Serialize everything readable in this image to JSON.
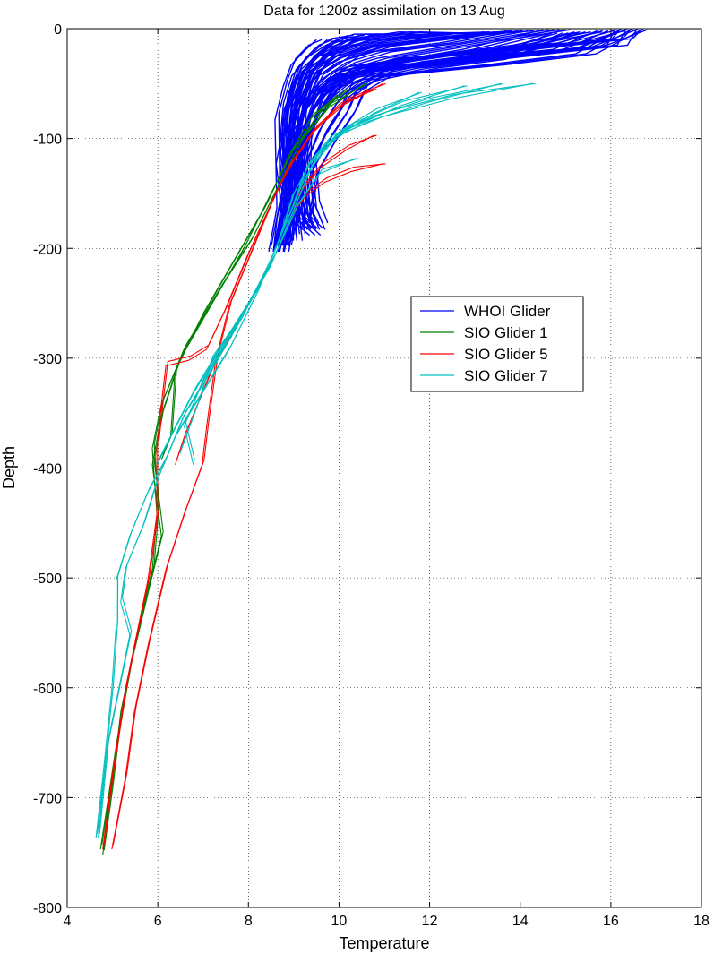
{
  "chart_data": {
    "type": "line",
    "title": "Data for 1200z assimilation on 13 Aug",
    "xlabel": "Temperature",
    "ylabel": "Depth",
    "xlim": [
      4,
      18
    ],
    "ylim": [
      -800,
      0
    ],
    "xticks": [
      4,
      6,
      8,
      10,
      12,
      14,
      16,
      18
    ],
    "yticks": [
      0,
      -100,
      -200,
      -300,
      -400,
      -500,
      -600,
      -700,
      -800
    ],
    "grid": true,
    "legend_position": "center-right",
    "series": [
      {
        "name": "WHOI Glider",
        "color": "#0000ff",
        "profiles": [
          [
            [
              16.4,
              0
            ],
            [
              16.2,
              -12
            ],
            [
              14,
              -22
            ],
            [
              11.5,
              -30
            ],
            [
              10.2,
              -42
            ],
            [
              9.6,
              -60
            ],
            [
              9.2,
              -90
            ],
            [
              9.0,
              -130
            ],
            [
              8.8,
              -170
            ],
            [
              8.7,
              -200
            ]
          ],
          [
            [
              16.0,
              -2
            ],
            [
              15,
              -16
            ],
            [
              12.5,
              -26
            ],
            [
              10.8,
              -36
            ],
            [
              9.9,
              -50
            ],
            [
              9.4,
              -75
            ],
            [
              9.1,
              -110
            ],
            [
              8.9,
              -150
            ],
            [
              8.8,
              -195
            ]
          ],
          [
            [
              15.5,
              -3
            ],
            [
              14,
              -18
            ],
            [
              12,
              -28
            ],
            [
              10.3,
              -38
            ],
            [
              9.7,
              -55
            ],
            [
              9.3,
              -85
            ],
            [
              9.1,
              -120
            ],
            [
              9.0,
              -160
            ],
            [
              9.1,
              -190
            ]
          ],
          [
            [
              14.8,
              -1
            ],
            [
              13,
              -16
            ],
            [
              11,
              -30
            ],
            [
              10,
              -42
            ],
            [
              9.5,
              -60
            ],
            [
              9.2,
              -95
            ],
            [
              9.2,
              -140
            ],
            [
              9.3,
              -175
            ]
          ],
          [
            [
              14,
              -2
            ],
            [
              12.5,
              -10
            ],
            [
              11,
              -18
            ],
            [
              10.2,
              -28
            ],
            [
              9.6,
              -45
            ],
            [
              9.2,
              -80
            ],
            [
              9.0,
              -115
            ],
            [
              8.9,
              -150
            ],
            [
              8.9,
              -190
            ]
          ],
          [
            [
              13.5,
              -3
            ],
            [
              12,
              -8
            ],
            [
              10.8,
              -14
            ],
            [
              10.0,
              -25
            ],
            [
              9.4,
              -40
            ],
            [
              9.1,
              -70
            ],
            [
              9.0,
              -110
            ],
            [
              9.0,
              -150
            ],
            [
              8.8,
              -200
            ]
          ],
          [
            [
              12.5,
              -4
            ],
            [
              11.5,
              -6
            ],
            [
              10.5,
              -12
            ],
            [
              9.8,
              -22
            ],
            [
              9.3,
              -40
            ],
            [
              9.0,
              -70
            ],
            [
              8.9,
              -110
            ],
            [
              9.0,
              -150
            ],
            [
              9.4,
              -180
            ]
          ],
          [
            [
              11.5,
              -5
            ],
            [
              10.5,
              -8
            ],
            [
              10,
              -15
            ],
            [
              9.6,
              -28
            ],
            [
              9.2,
              -50
            ],
            [
              9.0,
              -80
            ],
            [
              8.8,
              -120
            ],
            [
              8.9,
              -160
            ],
            [
              8.7,
              -200
            ]
          ],
          [
            [
              10.5,
              -6
            ],
            [
              10,
              -12
            ],
            [
              9.6,
              -22
            ],
            [
              9.2,
              -40
            ],
            [
              9.0,
              -65
            ],
            [
              8.9,
              -100
            ],
            [
              8.9,
              -140
            ],
            [
              9.1,
              -170
            ],
            [
              9.5,
              -185
            ]
          ],
          [
            [
              9.8,
              -10
            ],
            [
              9.5,
              -18
            ],
            [
              9.2,
              -30
            ],
            [
              9.0,
              -50
            ],
            [
              8.8,
              -80
            ],
            [
              8.8,
              -120
            ],
            [
              8.8,
              -160
            ],
            [
              8.6,
              -200
            ]
          ],
          [
            [
              16.5,
              -1
            ],
            [
              15.5,
              -20
            ],
            [
              13.5,
              -30
            ],
            [
              11,
              -40
            ],
            [
              10.4,
              -55
            ],
            [
              10.2,
              -75
            ],
            [
              9.8,
              -100
            ],
            [
              9.4,
              -130
            ],
            [
              9.2,
              -180
            ]
          ],
          [
            [
              15,
              -4
            ],
            [
              13.5,
              -25
            ],
            [
              12,
              -33
            ],
            [
              10.6,
              -45
            ],
            [
              10.0,
              -65
            ],
            [
              9.6,
              -90
            ],
            [
              9.3,
              -120
            ],
            [
              9.4,
              -160
            ],
            [
              9.6,
              -180
            ]
          ]
        ]
      },
      {
        "name": "SIO Glider 1",
        "color": "#008000",
        "profiles": [
          [
            [
              10.6,
              -50
            ],
            [
              9.8,
              -70
            ],
            [
              9.2,
              -100
            ],
            [
              8.7,
              -140
            ],
            [
              8.1,
              -190
            ],
            [
              7.4,
              -235
            ],
            [
              6.6,
              -290
            ],
            [
              6.1,
              -340
            ],
            [
              5.9,
              -380
            ],
            [
              6.0,
              -440
            ],
            [
              5.9,
              -490
            ],
            [
              5.5,
              -560
            ],
            [
              5.2,
              -620
            ],
            [
              5.0,
              -690
            ],
            [
              4.8,
              -750
            ]
          ],
          [
            [
              10.2,
              -55
            ],
            [
              9.6,
              -75
            ],
            [
              9.0,
              -110
            ],
            [
              8.5,
              -150
            ],
            [
              7.9,
              -200
            ],
            [
              7.2,
              -250
            ],
            [
              6.5,
              -300
            ],
            [
              6.1,
              -350
            ],
            [
              5.9,
              -395
            ],
            [
              6.1,
              -460
            ],
            [
              5.8,
              -510
            ],
            [
              5.4,
              -580
            ],
            [
              5.1,
              -650
            ],
            [
              4.75,
              -745
            ]
          ],
          [
            [
              10.0,
              -60
            ],
            [
              9.4,
              -80
            ],
            [
              8.9,
              -115
            ],
            [
              8.4,
              -160
            ],
            [
              7.7,
              -210
            ],
            [
              7.0,
              -260
            ],
            [
              6.4,
              -310
            ],
            [
              6.3,
              -370
            ],
            [
              6.1,
              -390
            ]
          ]
        ]
      },
      {
        "name": "SIO Glider 5",
        "color": "#ff0000",
        "profiles": [
          [
            [
              11.0,
              -50
            ],
            [
              10.2,
              -65
            ],
            [
              9.5,
              -90
            ],
            [
              9.0,
              -120
            ],
            [
              8.6,
              -150
            ],
            [
              8.1,
              -200
            ],
            [
              7.6,
              -250
            ],
            [
              7.3,
              -300
            ],
            [
              7.1,
              -360
            ],
            [
              7.0,
              -395
            ],
            [
              6.6,
              -440
            ],
            [
              6.2,
              -490
            ],
            [
              5.8,
              -560
            ],
            [
              5.5,
              -620
            ],
            [
              5.3,
              -680
            ],
            [
              5.0,
              -745
            ]
          ],
          [
            [
              10.8,
              -55
            ],
            [
              10.0,
              -70
            ],
            [
              9.4,
              -95
            ],
            [
              8.9,
              -125
            ],
            [
              8.5,
              -160
            ],
            [
              8.0,
              -205
            ],
            [
              7.5,
              -255
            ],
            [
              7.1,
              -290
            ],
            [
              6.7,
              -300
            ],
            [
              6.2,
              -305
            ],
            [
              6.1,
              -340
            ],
            [
              6.0,
              -380
            ],
            [
              6.0,
              -440
            ],
            [
              5.8,
              -500
            ],
            [
              5.5,
              -560
            ],
            [
              5.3,
              -600
            ],
            [
              5.0,
              -680
            ],
            [
              4.8,
              -745
            ]
          ],
          [
            [
              11.0,
              -123
            ],
            [
              10.3,
              -128
            ],
            [
              9.7,
              -138
            ],
            [
              9.3,
              -150
            ],
            [
              9.0,
              -165
            ]
          ],
          [
            [
              10.8,
              -97
            ],
            [
              10.2,
              -108
            ],
            [
              9.6,
              -125
            ],
            [
              9.1,
              -150
            ]
          ],
          [
            [
              7.6,
              -280
            ],
            [
              7.2,
              -310
            ],
            [
              6.9,
              -340
            ],
            [
              6.6,
              -370
            ],
            [
              6.4,
              -395
            ]
          ]
        ]
      },
      {
        "name": "SIO Glider 7",
        "color": "#00bfbf",
        "profiles": [
          [
            [
              14.3,
              -50
            ],
            [
              12.5,
              -62
            ],
            [
              11,
              -78
            ],
            [
              10,
              -95
            ],
            [
              9.4,
              -120
            ],
            [
              9.0,
              -150
            ],
            [
              8.7,
              -190
            ],
            [
              8.2,
              -240
            ],
            [
              7.6,
              -290
            ],
            [
              7.0,
              -330
            ],
            [
              6.4,
              -370
            ],
            [
              6.0,
              -410
            ],
            [
              5.7,
              -450
            ],
            [
              5.3,
              -490
            ],
            [
              5.2,
              -520
            ],
            [
              5.4,
              -550
            ],
            [
              5.2,
              -590
            ],
            [
              4.9,
              -650
            ],
            [
              4.7,
              -735
            ]
          ],
          [
            [
              13.6,
              -50
            ],
            [
              12,
              -65
            ],
            [
              10.7,
              -82
            ],
            [
              9.8,
              -100
            ],
            [
              9.3,
              -125
            ],
            [
              9.0,
              -160
            ],
            [
              8.5,
              -210
            ],
            [
              7.9,
              -260
            ],
            [
              7.2,
              -310
            ],
            [
              6.6,
              -350
            ],
            [
              6.2,
              -390
            ],
            [
              5.8,
              -420
            ],
            [
              5.4,
              -460
            ],
            [
              5.1,
              -500
            ],
            [
              5.1,
              -540
            ],
            [
              5.0,
              -600
            ],
            [
              4.8,
              -680
            ],
            [
              4.65,
              -735
            ]
          ],
          [
            [
              12.8,
              -52
            ],
            [
              11.4,
              -68
            ],
            [
              10.3,
              -88
            ],
            [
              9.6,
              -110
            ],
            [
              9.2,
              -140
            ],
            [
              8.8,
              -180
            ],
            [
              8.3,
              -230
            ],
            [
              7.6,
              -280
            ],
            [
              7.0,
              -320
            ],
            [
              6.6,
              -360
            ],
            [
              6.8,
              -395
            ]
          ],
          [
            [
              11.8,
              -58
            ],
            [
              10.8,
              -75
            ],
            [
              10,
              -95
            ],
            [
              9.4,
              -125
            ],
            [
              9.0,
              -165
            ],
            [
              8.5,
              -215
            ],
            [
              7.8,
              -265
            ],
            [
              7.2,
              -300
            ],
            [
              6.9,
              -340
            ],
            [
              6.5,
              -385
            ]
          ],
          [
            [
              10.4,
              -118
            ],
            [
              9.6,
              -130
            ],
            [
              9.1,
              -160
            ],
            [
              8.6,
              -205
            ],
            [
              8.0,
              -250
            ],
            [
              7.4,
              -290
            ],
            [
              6.8,
              -330
            ],
            [
              6.3,
              -370
            ],
            [
              6.0,
              -395
            ]
          ]
        ]
      }
    ]
  }
}
